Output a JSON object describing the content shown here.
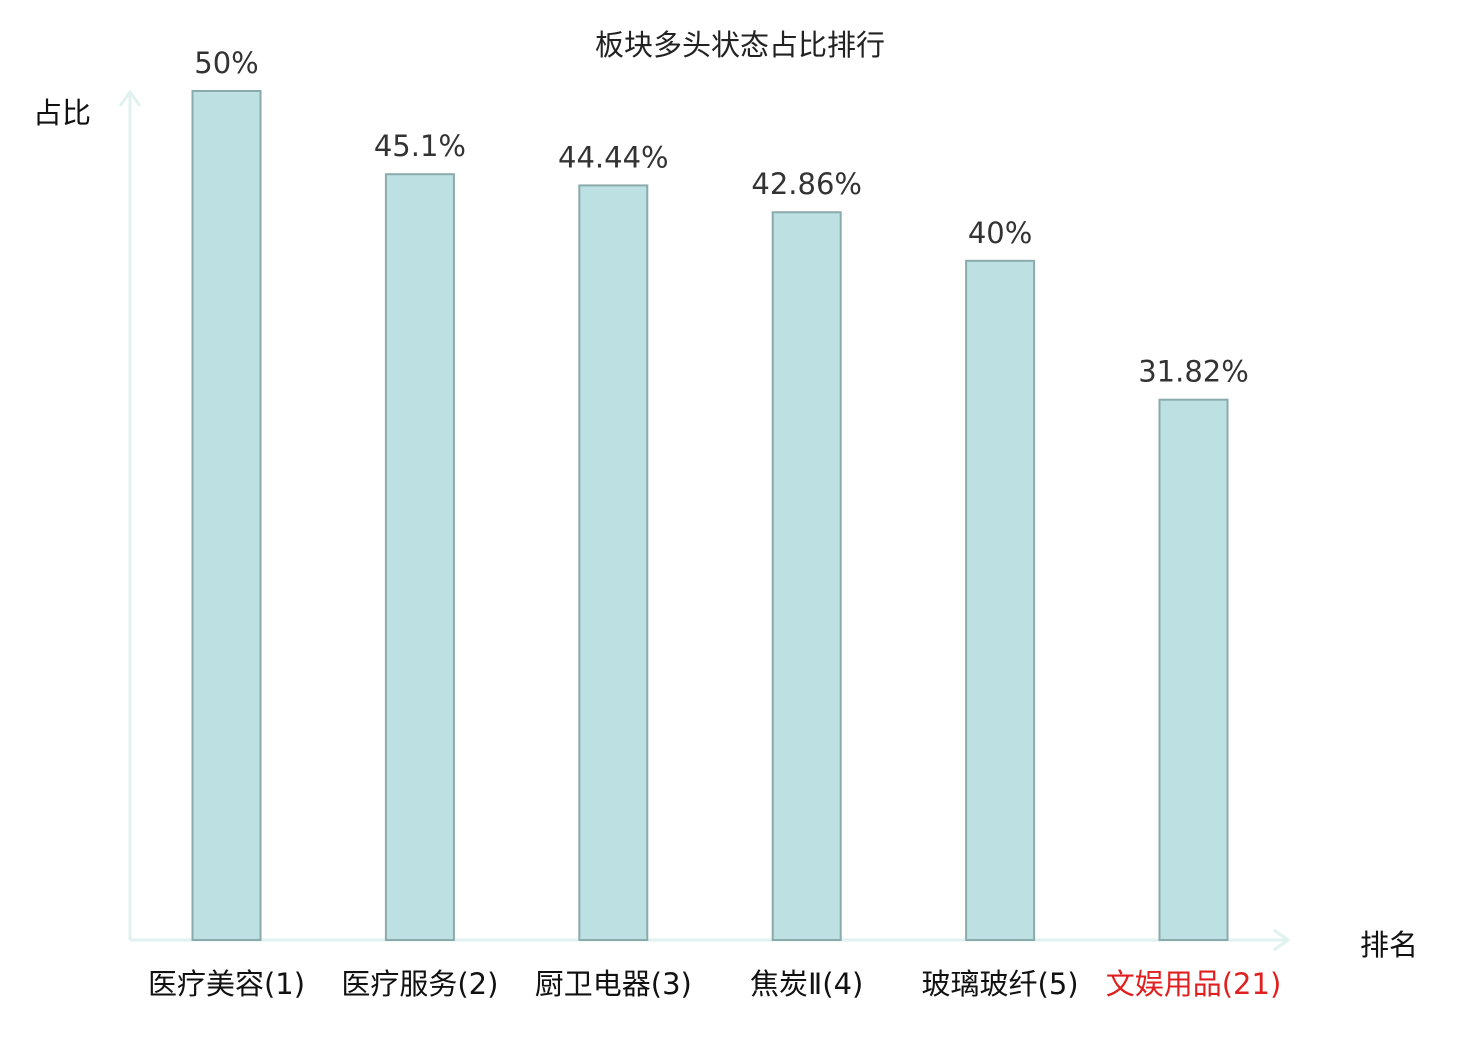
{
  "chart_data": {
    "type": "bar",
    "title": "板块多头状态占比排行",
    "ylabel": "占比",
    "xlabel": "排名",
    "categories": [
      "医疗美容(1)",
      "医疗服务(2)",
      "厨卫电器(3)",
      "焦炭Ⅱ(4)",
      "玻璃玻纤(5)",
      "文娱用品(21)"
    ],
    "values": [
      50,
      45.1,
      44.44,
      42.86,
      40,
      31.82
    ],
    "data_labels": [
      "50%",
      "45.1%",
      "44.44%",
      "42.86%",
      "40%",
      "31.82%"
    ],
    "highlight_index": 5,
    "ylim": [
      0,
      50
    ],
    "grid": false,
    "colors": {
      "bar_fill": "#bde1e3",
      "bar_stroke": "#8aaaab",
      "axis": "#e0f2ef",
      "label": "#333333",
      "highlight_label": "#e02020"
    }
  }
}
